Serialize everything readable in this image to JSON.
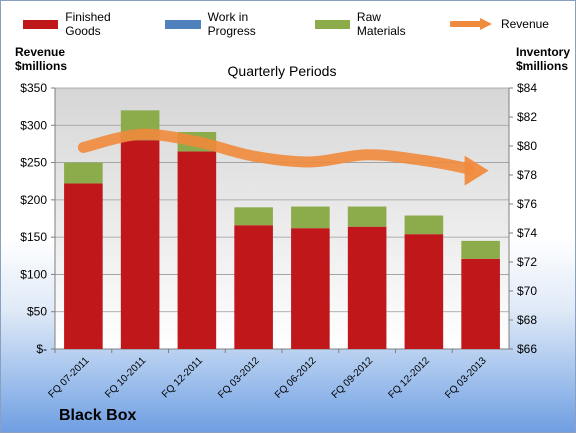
{
  "legend": {
    "finished_goods": "Finished Goods",
    "work_in_progress": "Work in Progress",
    "raw_materials": "Raw Materials",
    "revenue": "Revenue"
  },
  "left_axis_title": {
    "line1": "Revenue",
    "line2": "$millions"
  },
  "right_axis_title": {
    "line1": "Inventory",
    "line2": "$millions"
  },
  "brand": "Black Box",
  "colors": {
    "finished_goods": "#c0171b",
    "work_in_progress": "#4f81bd",
    "raw_materials": "#8cab4b",
    "revenue": "#f08a3c"
  },
  "chart_data": {
    "type": "bar",
    "stacked": true,
    "title": "Quarterly Periods",
    "categories": [
      "FQ 07-2011",
      "FQ 10-2011",
      "FQ 12-2011",
      "FQ 03-2012",
      "FQ 06-2012",
      "FQ 09-2012",
      "FQ 12-2012",
      "FQ 03-2013"
    ],
    "series": [
      {
        "name": "Finished Goods",
        "axis": "left",
        "values": [
          222,
          280,
          265,
          166,
          162,
          164,
          154,
          121
        ]
      },
      {
        "name": "Work in Progress",
        "axis": "left",
        "values": [
          0,
          0,
          0,
          0,
          0,
          0,
          0,
          0
        ]
      },
      {
        "name": "Raw Materials",
        "axis": "left",
        "values": [
          28,
          40,
          26,
          24,
          29,
          27,
          25,
          24
        ]
      },
      {
        "name": "Revenue",
        "axis": "right",
        "type": "line",
        "values": [
          79.9,
          80.8,
          80.3,
          79.3,
          78.9,
          79.4,
          79.0,
          78.3
        ]
      }
    ],
    "y_left": {
      "ylim": [
        0,
        350
      ],
      "ticks": [
        0,
        50,
        100,
        150,
        200,
        250,
        300,
        350
      ],
      "tick_labels": [
        "$-",
        "$50",
        "$100",
        "$150",
        "$200",
        "$250",
        "$300",
        "$350"
      ]
    },
    "y_right": {
      "ylim": [
        66,
        84
      ],
      "ticks": [
        66,
        68,
        70,
        72,
        74,
        76,
        78,
        80,
        82,
        84
      ],
      "tick_labels": [
        "$66",
        "$68",
        "$70",
        "$72",
        "$74",
        "$76",
        "$78",
        "$80",
        "$82",
        "$84"
      ]
    },
    "grid": true,
    "legend_position": "top"
  }
}
